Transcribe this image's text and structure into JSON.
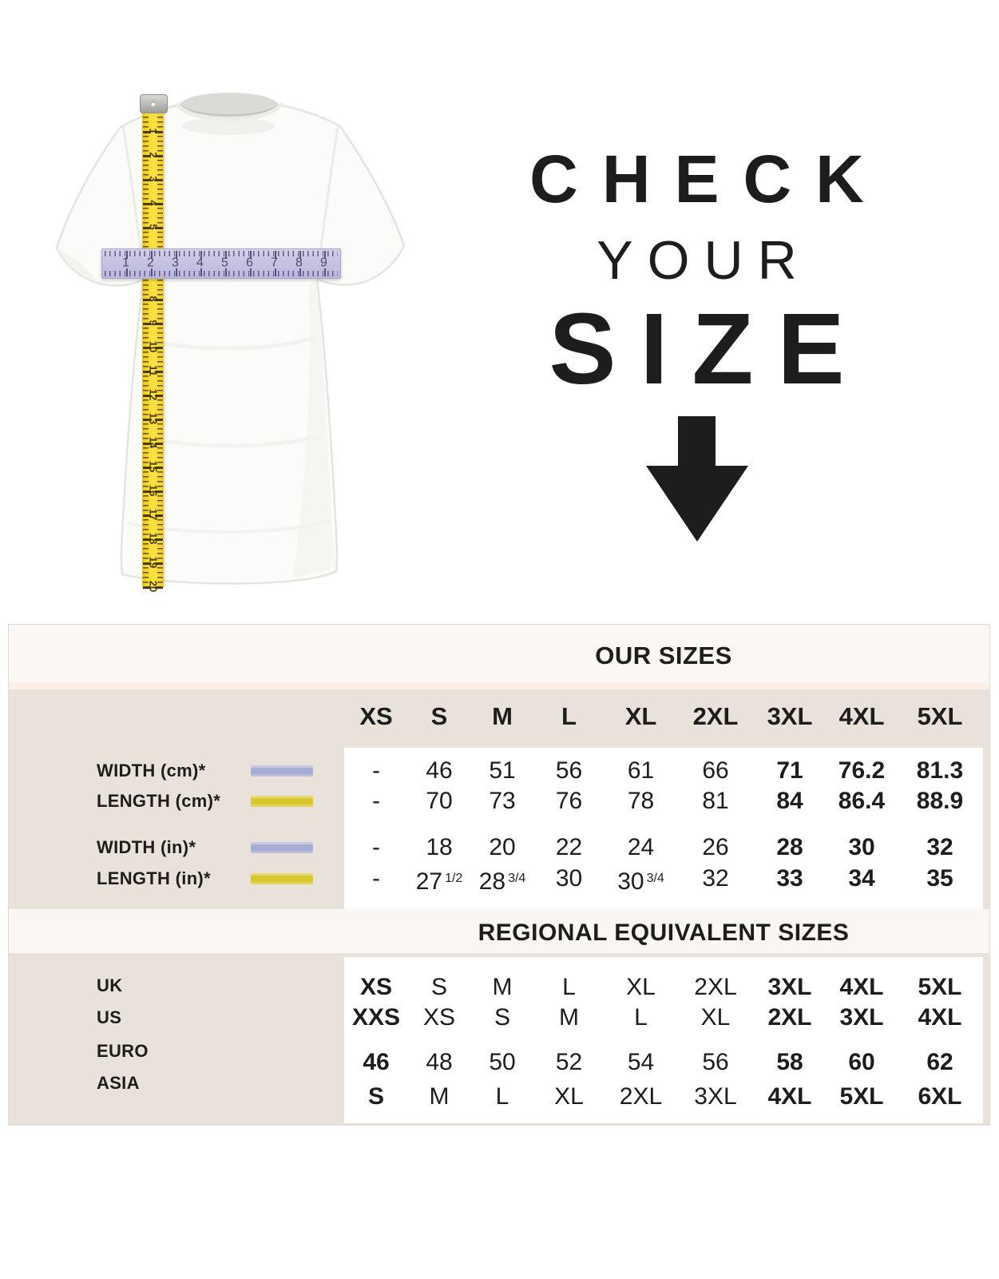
{
  "hero": {
    "headline": {
      "line1": "CHECK",
      "line2": "YOUR",
      "line3": "SIZE"
    },
    "arrow_icon": "down-arrow",
    "tshirt_illustration": {
      "vertical_tape": {
        "unit_numbers": [
          1,
          2,
          3,
          4,
          5,
          6,
          7,
          8,
          9,
          10,
          11,
          12,
          13,
          14,
          15,
          16,
          17,
          18,
          19,
          20
        ],
        "tape_color": "#f8d92a",
        "measures": "length"
      },
      "horizontal_ruler": {
        "unit_numbers": [
          1,
          2,
          3,
          4,
          5,
          6,
          7,
          8,
          9
        ],
        "ruler_color": "#c7c4e2",
        "measures": "width"
      }
    }
  },
  "chart_data": [
    {
      "type": "table",
      "title": "OUR SIZES",
      "columns": [
        "XS",
        "S",
        "M",
        "L",
        "XL",
        "2XL",
        "3XL",
        "4XL",
        "5XL"
      ],
      "rows": [
        {
          "label": "WIDTH (cm)*",
          "swatch": "blue",
          "cells": [
            {
              "t": "-"
            },
            {
              "t": "46"
            },
            {
              "t": "51"
            },
            {
              "t": "56"
            },
            {
              "t": "61"
            },
            {
              "t": "66"
            },
            {
              "t": "71",
              "b": 1
            },
            {
              "t": "76.2",
              "b": 1
            },
            {
              "t": "81.3",
              "b": 1
            }
          ]
        },
        {
          "label": "LENGTH (cm)*",
          "swatch": "yellow",
          "cells": [
            {
              "t": "-"
            },
            {
              "t": "70"
            },
            {
              "t": "73"
            },
            {
              "t": "76"
            },
            {
              "t": "78"
            },
            {
              "t": "81"
            },
            {
              "t": "84",
              "b": 1
            },
            {
              "t": "86.4",
              "b": 1
            },
            {
              "t": "88.9",
              "b": 1
            }
          ]
        },
        {
          "label": "WIDTH (in)*",
          "swatch": "blue",
          "cells": [
            {
              "t": "-"
            },
            {
              "t": "18"
            },
            {
              "t": "20"
            },
            {
              "t": "22"
            },
            {
              "t": "24"
            },
            {
              "t": "26"
            },
            {
              "t": "28",
              "b": 1
            },
            {
              "t": "30",
              "b": 1
            },
            {
              "t": "32",
              "b": 1
            }
          ]
        },
        {
          "label": "LENGTH (in)*",
          "swatch": "yellow",
          "cells": [
            {
              "t": "-"
            },
            {
              "t": "27",
              "f": "1/2"
            },
            {
              "t": "28",
              "f": "3/4"
            },
            {
              "t": "30"
            },
            {
              "t": "30",
              "f": "3/4"
            },
            {
              "t": "32"
            },
            {
              "t": "33",
              "b": 1
            },
            {
              "t": "34",
              "b": 1
            },
            {
              "t": "35",
              "b": 1
            }
          ]
        }
      ]
    },
    {
      "type": "table",
      "title": "REGIONAL EQUIVALENT SIZES",
      "rows": [
        {
          "label": "UK",
          "cells": [
            {
              "t": "XS",
              "b": 1
            },
            {
              "t": "S"
            },
            {
              "t": "M"
            },
            {
              "t": "L"
            },
            {
              "t": "XL"
            },
            {
              "t": "2XL"
            },
            {
              "t": "3XL",
              "b": 1
            },
            {
              "t": "4XL",
              "b": 1
            },
            {
              "t": "5XL",
              "b": 1
            }
          ]
        },
        {
          "label": "US",
          "cells": [
            {
              "t": "XXS",
              "b": 1
            },
            {
              "t": "XS"
            },
            {
              "t": "S"
            },
            {
              "t": "M"
            },
            {
              "t": "L"
            },
            {
              "t": "XL"
            },
            {
              "t": "2XL",
              "b": 1
            },
            {
              "t": "3XL",
              "b": 1
            },
            {
              "t": "4XL",
              "b": 1
            }
          ]
        },
        {
          "label": "EURO",
          "cells": [
            {
              "t": "46",
              "b": 1
            },
            {
              "t": "48"
            },
            {
              "t": "50"
            },
            {
              "t": "52"
            },
            {
              "t": "54"
            },
            {
              "t": "56"
            },
            {
              "t": "58",
              "b": 1
            },
            {
              "t": "60",
              "b": 1
            },
            {
              "t": "62",
              "b": 1
            }
          ]
        },
        {
          "label": "ASIA",
          "cells": [
            {
              "t": "S",
              "b": 1
            },
            {
              "t": "M"
            },
            {
              "t": "L"
            },
            {
              "t": "XL"
            },
            {
              "t": "2XL"
            },
            {
              "t": "3XL"
            },
            {
              "t": "4XL",
              "b": 1
            },
            {
              "t": "5XL",
              "b": 1
            },
            {
              "t": "6XL",
              "b": 1
            }
          ]
        }
      ]
    }
  ],
  "colors": {
    "text": "#1d1d1b",
    "table_beige": "#e8e2db",
    "band_offwhite": "#faf7f4",
    "pink_divider": "#fbf0e8",
    "panel_white": "#ffffff",
    "swatch_blue": "#a6acd3",
    "swatch_yellow": "#d9c72f",
    "tape_yellow": "#f8d92a",
    "ruler_lavender": "#c7c4e2",
    "arrow_black": "#1d1d1b"
  }
}
